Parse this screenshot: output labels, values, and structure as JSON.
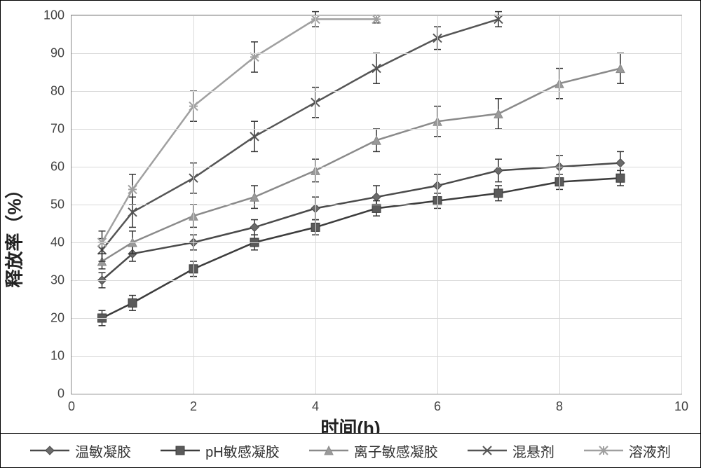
{
  "chart": {
    "type": "line",
    "xlabel": "时间(h)",
    "ylabel": "释放率（%）",
    "label_fontsize": 26,
    "tick_fontsize": 18,
    "xlim": [
      0,
      10
    ],
    "ylim": [
      0,
      100
    ],
    "xtick_step": 2,
    "ytick_step": 10,
    "grid_color": "#d9d9d9",
    "background_color": "#ffffff",
    "line_width": 2.5,
    "marker_size": 12,
    "error_cap": 10,
    "series": [
      {
        "name": "温敏凝胶",
        "marker": "diamond",
        "color": "#6b6b6b",
        "stroke": "#4a4a4a",
        "x": [
          0.5,
          1,
          2,
          3,
          4,
          5,
          6,
          7,
          8,
          9
        ],
        "y": [
          30,
          37,
          40,
          44,
          49,
          52,
          55,
          59,
          60,
          61
        ],
        "err": [
          2,
          2,
          2,
          2,
          3,
          3,
          3,
          3,
          3,
          3
        ]
      },
      {
        "name": "pH敏感凝胶",
        "marker": "square",
        "color": "#5a5a5a",
        "stroke": "#3c3c3c",
        "x": [
          0.5,
          1,
          2,
          3,
          4,
          5,
          6,
          7,
          8,
          9
        ],
        "y": [
          20,
          24,
          33,
          40,
          44,
          49,
          51,
          53,
          56,
          57
        ],
        "err": [
          2,
          2,
          2,
          2,
          2,
          2,
          2,
          2,
          2,
          2
        ]
      },
      {
        "name": "离子敏感凝胶",
        "marker": "triangle",
        "color": "#9a9a9a",
        "stroke": "#8a8a8a",
        "x": [
          0.5,
          1,
          2,
          3,
          4,
          5,
          6,
          7,
          8,
          9
        ],
        "y": [
          35,
          40,
          47,
          52,
          59,
          67,
          72,
          74,
          82,
          86
        ],
        "err": [
          2,
          3,
          3,
          3,
          3,
          3,
          4,
          4,
          4,
          4
        ]
      },
      {
        "name": "混悬剂",
        "marker": "x",
        "color": "#666666",
        "stroke": "#555555",
        "x": [
          0.5,
          1,
          2,
          3,
          4,
          5,
          6,
          7
        ],
        "y": [
          38,
          48,
          57,
          68,
          77,
          86,
          94,
          99
        ],
        "err": [
          3,
          4,
          4,
          4,
          4,
          4,
          3,
          2
        ]
      },
      {
        "name": "溶液剂",
        "marker": "star",
        "color": "#b0b0b0",
        "stroke": "#a0a0a0",
        "x": [
          0.5,
          1,
          2,
          3,
          4,
          5
        ],
        "y": [
          40,
          54,
          76,
          89,
          99,
          99
        ],
        "err": [
          3,
          4,
          4,
          4,
          2,
          1
        ]
      }
    ]
  },
  "legend_title": ""
}
